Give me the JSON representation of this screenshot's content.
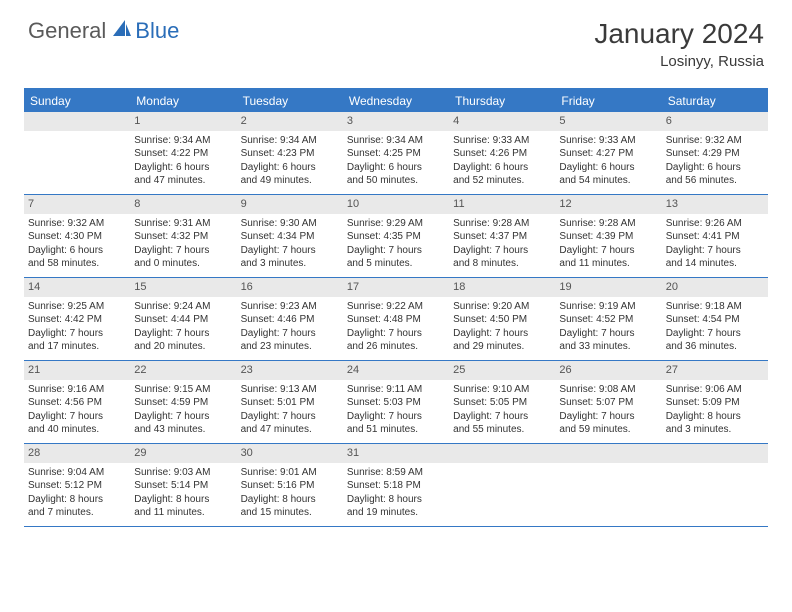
{
  "brand": {
    "part1": "General",
    "part2": "Blue"
  },
  "title": "January 2024",
  "location": "Losinyy, Russia",
  "colors": {
    "header_bg": "#3578c5",
    "header_text": "#ffffff",
    "daynum_bg": "#e9e9e9",
    "border": "#3578c5",
    "text": "#333333",
    "logo_gray": "#5a5a5a",
    "logo_blue": "#2a6db8"
  },
  "day_names": [
    "Sunday",
    "Monday",
    "Tuesday",
    "Wednesday",
    "Thursday",
    "Friday",
    "Saturday"
  ],
  "weeks": [
    [
      null,
      {
        "n": "1",
        "sr": "Sunrise: 9:34 AM",
        "ss": "Sunset: 4:22 PM",
        "d1": "Daylight: 6 hours",
        "d2": "and 47 minutes."
      },
      {
        "n": "2",
        "sr": "Sunrise: 9:34 AM",
        "ss": "Sunset: 4:23 PM",
        "d1": "Daylight: 6 hours",
        "d2": "and 49 minutes."
      },
      {
        "n": "3",
        "sr": "Sunrise: 9:34 AM",
        "ss": "Sunset: 4:25 PM",
        "d1": "Daylight: 6 hours",
        "d2": "and 50 minutes."
      },
      {
        "n": "4",
        "sr": "Sunrise: 9:33 AM",
        "ss": "Sunset: 4:26 PM",
        "d1": "Daylight: 6 hours",
        "d2": "and 52 minutes."
      },
      {
        "n": "5",
        "sr": "Sunrise: 9:33 AM",
        "ss": "Sunset: 4:27 PM",
        "d1": "Daylight: 6 hours",
        "d2": "and 54 minutes."
      },
      {
        "n": "6",
        "sr": "Sunrise: 9:32 AM",
        "ss": "Sunset: 4:29 PM",
        "d1": "Daylight: 6 hours",
        "d2": "and 56 minutes."
      }
    ],
    [
      {
        "n": "7",
        "sr": "Sunrise: 9:32 AM",
        "ss": "Sunset: 4:30 PM",
        "d1": "Daylight: 6 hours",
        "d2": "and 58 minutes."
      },
      {
        "n": "8",
        "sr": "Sunrise: 9:31 AM",
        "ss": "Sunset: 4:32 PM",
        "d1": "Daylight: 7 hours",
        "d2": "and 0 minutes."
      },
      {
        "n": "9",
        "sr": "Sunrise: 9:30 AM",
        "ss": "Sunset: 4:34 PM",
        "d1": "Daylight: 7 hours",
        "d2": "and 3 minutes."
      },
      {
        "n": "10",
        "sr": "Sunrise: 9:29 AM",
        "ss": "Sunset: 4:35 PM",
        "d1": "Daylight: 7 hours",
        "d2": "and 5 minutes."
      },
      {
        "n": "11",
        "sr": "Sunrise: 9:28 AM",
        "ss": "Sunset: 4:37 PM",
        "d1": "Daylight: 7 hours",
        "d2": "and 8 minutes."
      },
      {
        "n": "12",
        "sr": "Sunrise: 9:28 AM",
        "ss": "Sunset: 4:39 PM",
        "d1": "Daylight: 7 hours",
        "d2": "and 11 minutes."
      },
      {
        "n": "13",
        "sr": "Sunrise: 9:26 AM",
        "ss": "Sunset: 4:41 PM",
        "d1": "Daylight: 7 hours",
        "d2": "and 14 minutes."
      }
    ],
    [
      {
        "n": "14",
        "sr": "Sunrise: 9:25 AM",
        "ss": "Sunset: 4:42 PM",
        "d1": "Daylight: 7 hours",
        "d2": "and 17 minutes."
      },
      {
        "n": "15",
        "sr": "Sunrise: 9:24 AM",
        "ss": "Sunset: 4:44 PM",
        "d1": "Daylight: 7 hours",
        "d2": "and 20 minutes."
      },
      {
        "n": "16",
        "sr": "Sunrise: 9:23 AM",
        "ss": "Sunset: 4:46 PM",
        "d1": "Daylight: 7 hours",
        "d2": "and 23 minutes."
      },
      {
        "n": "17",
        "sr": "Sunrise: 9:22 AM",
        "ss": "Sunset: 4:48 PM",
        "d1": "Daylight: 7 hours",
        "d2": "and 26 minutes."
      },
      {
        "n": "18",
        "sr": "Sunrise: 9:20 AM",
        "ss": "Sunset: 4:50 PM",
        "d1": "Daylight: 7 hours",
        "d2": "and 29 minutes."
      },
      {
        "n": "19",
        "sr": "Sunrise: 9:19 AM",
        "ss": "Sunset: 4:52 PM",
        "d1": "Daylight: 7 hours",
        "d2": "and 33 minutes."
      },
      {
        "n": "20",
        "sr": "Sunrise: 9:18 AM",
        "ss": "Sunset: 4:54 PM",
        "d1": "Daylight: 7 hours",
        "d2": "and 36 minutes."
      }
    ],
    [
      {
        "n": "21",
        "sr": "Sunrise: 9:16 AM",
        "ss": "Sunset: 4:56 PM",
        "d1": "Daylight: 7 hours",
        "d2": "and 40 minutes."
      },
      {
        "n": "22",
        "sr": "Sunrise: 9:15 AM",
        "ss": "Sunset: 4:59 PM",
        "d1": "Daylight: 7 hours",
        "d2": "and 43 minutes."
      },
      {
        "n": "23",
        "sr": "Sunrise: 9:13 AM",
        "ss": "Sunset: 5:01 PM",
        "d1": "Daylight: 7 hours",
        "d2": "and 47 minutes."
      },
      {
        "n": "24",
        "sr": "Sunrise: 9:11 AM",
        "ss": "Sunset: 5:03 PM",
        "d1": "Daylight: 7 hours",
        "d2": "and 51 minutes."
      },
      {
        "n": "25",
        "sr": "Sunrise: 9:10 AM",
        "ss": "Sunset: 5:05 PM",
        "d1": "Daylight: 7 hours",
        "d2": "and 55 minutes."
      },
      {
        "n": "26",
        "sr": "Sunrise: 9:08 AM",
        "ss": "Sunset: 5:07 PM",
        "d1": "Daylight: 7 hours",
        "d2": "and 59 minutes."
      },
      {
        "n": "27",
        "sr": "Sunrise: 9:06 AM",
        "ss": "Sunset: 5:09 PM",
        "d1": "Daylight: 8 hours",
        "d2": "and 3 minutes."
      }
    ],
    [
      {
        "n": "28",
        "sr": "Sunrise: 9:04 AM",
        "ss": "Sunset: 5:12 PM",
        "d1": "Daylight: 8 hours",
        "d2": "and 7 minutes."
      },
      {
        "n": "29",
        "sr": "Sunrise: 9:03 AM",
        "ss": "Sunset: 5:14 PM",
        "d1": "Daylight: 8 hours",
        "d2": "and 11 minutes."
      },
      {
        "n": "30",
        "sr": "Sunrise: 9:01 AM",
        "ss": "Sunset: 5:16 PM",
        "d1": "Daylight: 8 hours",
        "d2": "and 15 minutes."
      },
      {
        "n": "31",
        "sr": "Sunrise: 8:59 AM",
        "ss": "Sunset: 5:18 PM",
        "d1": "Daylight: 8 hours",
        "d2": "and 19 minutes."
      },
      null,
      null,
      null
    ]
  ]
}
